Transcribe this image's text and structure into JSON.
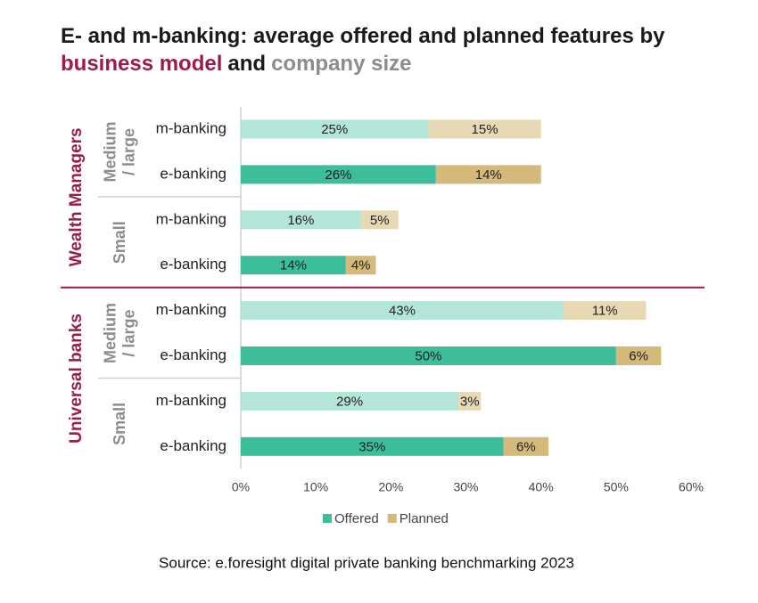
{
  "chart_data": {
    "type": "bar",
    "orientation": "horizontal",
    "stacked": true,
    "title_parts": [
      {
        "text": "E- and m-banking: average offered and planned features by",
        "color": "#1a1a1a"
      },
      {
        "text": "business model",
        "color": "#9b1b4a"
      },
      {
        "text": "and",
        "color": "#1a1a1a"
      },
      {
        "text": "company size",
        "color": "#8c8c8c"
      }
    ],
    "groups": [
      {
        "name": "Wealth Managers",
        "color": "#9b1b4a",
        "subgroups": [
          {
            "name": [
              "Medium",
              "/ large"
            ]
          },
          {
            "name": [
              "Small"
            ]
          }
        ]
      },
      {
        "name": "Universal banks",
        "color": "#9b1b4a",
        "subgroups": [
          {
            "name": [
              "Medium",
              "/ large"
            ]
          },
          {
            "name": [
              "Small"
            ]
          }
        ]
      }
    ],
    "subgroup_color": "#8c8c8c",
    "categories": [
      "m-banking",
      "e-banking",
      "m-banking",
      "e-banking",
      "m-banking",
      "e-banking",
      "m-banking",
      "e-banking"
    ],
    "series": [
      {
        "name": "Offered",
        "color": "#3dbd9a",
        "colors": [
          "#b3e6d8",
          "#3dbd9a",
          "#b3e6d8",
          "#3dbd9a",
          "#b3e6d8",
          "#3dbd9a",
          "#b3e6d8",
          "#3dbd9a"
        ],
        "values": [
          25,
          26,
          16,
          14,
          43,
          50,
          29,
          35
        ],
        "value_labels": [
          "25%",
          "26%",
          "16%",
          "14%",
          "43%",
          "50%",
          "29%",
          "35%"
        ]
      },
      {
        "name": "Planned",
        "color": "#d4b97a",
        "colors": [
          "#e8d9b5",
          "#d4b97a",
          "#e8d9b5",
          "#d4b97a",
          "#e8d9b5",
          "#d4b97a",
          "#e8d9b5",
          "#d4b97a"
        ],
        "values": [
          15,
          14,
          5,
          4,
          11,
          6,
          3,
          6
        ],
        "value_labels": [
          "15%",
          "14%",
          "5%",
          "4%",
          "11%",
          "6%",
          "3%",
          "6%"
        ]
      }
    ],
    "xlim": [
      0,
      60
    ],
    "xticks": [
      {
        "value": 0,
        "label": "0%"
      },
      {
        "value": 10,
        "label": "10%"
      },
      {
        "value": 20,
        "label": "20%"
      },
      {
        "value": 30,
        "label": "30%"
      },
      {
        "value": 40,
        "label": "40%"
      },
      {
        "value": 50,
        "label": "50%"
      },
      {
        "value": 60,
        "label": "60%"
      }
    ],
    "legend": "bottom",
    "source": "Source: e.foresight digital private banking benchmarking 2023"
  }
}
